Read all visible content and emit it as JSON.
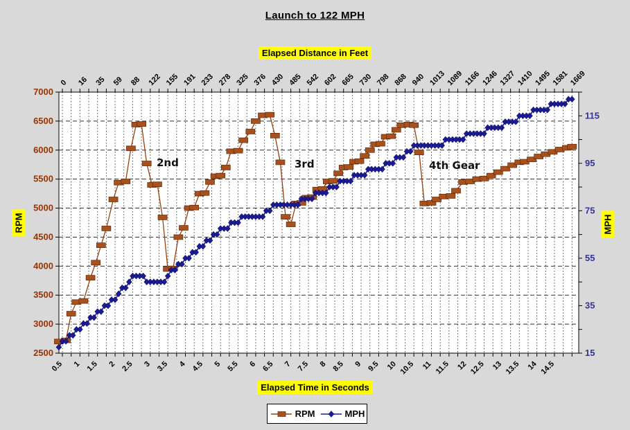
{
  "chart_data": {
    "type": "line",
    "title": "Launch to 122 MPH",
    "x_axis_top": {
      "label": "Elapsed Distance in Feet",
      "tick_labels": [
        "0",
        "16",
        "35",
        "59",
        "88",
        "122",
        "155",
        "191",
        "233",
        "278",
        "325",
        "376",
        "430",
        "485",
        "542",
        "602",
        "665",
        "730",
        "798",
        "868",
        "940",
        "1013",
        "1089",
        "1166",
        "1246",
        "1327",
        "1410",
        "1495",
        "1581",
        "1669"
      ],
      "tick_start_seconds": 0.5,
      "tick_step_seconds": 0.5
    },
    "x_axis_bottom": {
      "label": "Elapsed Time in Seconds",
      "tick_labels": [
        "0.5",
        "1",
        "1.5",
        "2",
        "2.5",
        "3",
        "3.5",
        "4",
        "4.5",
        "5",
        "5.5",
        "6",
        "6.5",
        "7",
        "7.5",
        "8",
        "8.5",
        "9",
        "9.5",
        "10",
        "10.5",
        "11",
        "11.5",
        "12",
        "12.5",
        "13",
        "13.5",
        "14",
        "14.5"
      ],
      "tick_start_seconds": 0.5,
      "tick_step_seconds": 0.5,
      "minor_tick_seconds": 0.25,
      "range_seconds": [
        0.4,
        15.2
      ]
    },
    "y_axis_left": {
      "label": "RPM",
      "min": 2500,
      "max": 7000,
      "major_step": 500,
      "ticks": [
        2500,
        3000,
        3500,
        4000,
        4500,
        5000,
        5500,
        6000,
        6500,
        7000
      ],
      "tick_color": "#993300"
    },
    "y_axis_right": {
      "label": "MPH",
      "min": 15,
      "max": 125,
      "minor_step": 10,
      "tick_marks": [
        15,
        25,
        35,
        45,
        55,
        65,
        75,
        85,
        95,
        105,
        115,
        125
      ],
      "labeled_ticks": [
        15,
        35,
        55,
        75,
        95,
        115
      ],
      "tick_color": "#333399"
    },
    "grid": {
      "vertical_dotted_every_seconds": 0.25,
      "horizontal_dashed_every_rpm": 500
    },
    "annotations": [
      {
        "text": "2nd",
        "t": 3.6,
        "rpm": 5750
      },
      {
        "text": "3rd",
        "t": 7.2,
        "rpm": 5750
      },
      {
        "text": "4th Gear",
        "t": 11.3,
        "rpm": 5700
      }
    ],
    "series": [
      {
        "name": "RPM",
        "axis": "left",
        "marker": "square",
        "color": "#A9511D",
        "line_color": "#953F10",
        "points": [
          [
            0.4,
            2700
          ],
          [
            0.6,
            2720
          ],
          [
            0.75,
            3180
          ],
          [
            0.9,
            3380
          ],
          [
            1.1,
            3400
          ],
          [
            1.3,
            3800
          ],
          [
            1.45,
            4060
          ],
          [
            1.6,
            4360
          ],
          [
            1.75,
            4650
          ],
          [
            1.95,
            5150
          ],
          [
            2.1,
            5440
          ],
          [
            2.3,
            5460
          ],
          [
            2.45,
            6030
          ],
          [
            2.6,
            6440
          ],
          [
            2.75,
            6450
          ],
          [
            2.9,
            5770
          ],
          [
            3.05,
            5400
          ],
          [
            3.2,
            5410
          ],
          [
            3.35,
            4840
          ],
          [
            3.5,
            3950
          ],
          [
            3.65,
            3960
          ],
          [
            3.8,
            4500
          ],
          [
            3.95,
            4660
          ],
          [
            4.1,
            5000
          ],
          [
            4.25,
            5010
          ],
          [
            4.4,
            5250
          ],
          [
            4.55,
            5260
          ],
          [
            4.7,
            5450
          ],
          [
            4.85,
            5550
          ],
          [
            5.0,
            5560
          ],
          [
            5.15,
            5700
          ],
          [
            5.3,
            5980
          ],
          [
            5.5,
            5990
          ],
          [
            5.65,
            6170
          ],
          [
            5.85,
            6320
          ],
          [
            6.0,
            6500
          ],
          [
            6.2,
            6600
          ],
          [
            6.4,
            6610
          ],
          [
            6.55,
            6250
          ],
          [
            6.7,
            5790
          ],
          [
            6.85,
            4850
          ],
          [
            7.0,
            4720
          ],
          [
            7.15,
            5080
          ],
          [
            7.3,
            5090
          ],
          [
            7.45,
            5180
          ],
          [
            7.6,
            5190
          ],
          [
            7.75,
            5320
          ],
          [
            7.9,
            5330
          ],
          [
            8.05,
            5460
          ],
          [
            8.2,
            5470
          ],
          [
            8.35,
            5600
          ],
          [
            8.5,
            5700
          ],
          [
            8.65,
            5710
          ],
          [
            8.8,
            5800
          ],
          [
            8.95,
            5810
          ],
          [
            9.1,
            5900
          ],
          [
            9.25,
            6000
          ],
          [
            9.4,
            6100
          ],
          [
            9.55,
            6110
          ],
          [
            9.7,
            6230
          ],
          [
            9.85,
            6240
          ],
          [
            10.0,
            6350
          ],
          [
            10.15,
            6430
          ],
          [
            10.35,
            6440
          ],
          [
            10.5,
            6430
          ],
          [
            10.65,
            5960
          ],
          [
            10.8,
            5080
          ],
          [
            11.0,
            5090
          ],
          [
            11.15,
            5150
          ],
          [
            11.35,
            5200
          ],
          [
            11.55,
            5210
          ],
          [
            11.7,
            5300
          ],
          [
            11.9,
            5450
          ],
          [
            12.1,
            5460
          ],
          [
            12.3,
            5500
          ],
          [
            12.5,
            5510
          ],
          [
            12.7,
            5560
          ],
          [
            12.9,
            5620
          ],
          [
            13.1,
            5680
          ],
          [
            13.3,
            5740
          ],
          [
            13.5,
            5790
          ],
          [
            13.65,
            5800
          ],
          [
            13.85,
            5840
          ],
          [
            14.05,
            5890
          ],
          [
            14.25,
            5930
          ],
          [
            14.45,
            5970
          ],
          [
            14.65,
            6010
          ],
          [
            14.85,
            6040
          ],
          [
            15.0,
            6060
          ]
        ]
      },
      {
        "name": "MPH",
        "axis": "right",
        "marker": "diamond",
        "color": "#1B1B94",
        "line_color": "#1B1B94",
        "sample_dt": 0.1,
        "quantize_mph": 2.5,
        "max_mph": 122,
        "profile_points": [
          [
            0.4,
            17.5
          ],
          [
            1.0,
            25
          ],
          [
            1.5,
            31.5
          ],
          [
            2.0,
            38
          ],
          [
            2.55,
            47.5
          ],
          [
            2.8,
            47.5
          ],
          [
            2.95,
            45.5
          ],
          [
            3.35,
            45.5
          ],
          [
            4.0,
            54
          ],
          [
            4.5,
            61
          ],
          [
            5.0,
            66.5
          ],
          [
            5.5,
            71
          ],
          [
            6.2,
            73.5
          ],
          [
            6.6,
            77.3
          ],
          [
            7.05,
            77.3
          ],
          [
            8.0,
            83.5
          ],
          [
            9.0,
            90.5
          ],
          [
            9.7,
            94
          ],
          [
            10.5,
            101.5
          ],
          [
            10.65,
            102.4
          ],
          [
            11.05,
            102.4
          ],
          [
            11.5,
            104.5
          ],
          [
            12.5,
            108.5
          ],
          [
            13.5,
            114
          ],
          [
            14.2,
            118
          ],
          [
            15.0,
            122
          ]
        ]
      }
    ]
  }
}
